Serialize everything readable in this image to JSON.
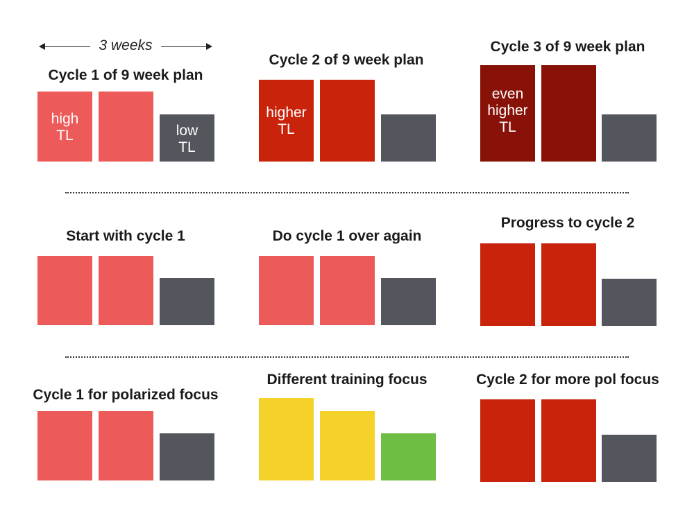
{
  "colors": {
    "light_red": "#ec5a59",
    "red": "#c9240b",
    "dark_red": "#881207",
    "gray": "#53565c",
    "yellow": "#f4d22a",
    "green": "#6fbe44"
  },
  "weeks_label": "3 weeks",
  "panels": [
    {
      "title": "Cycle 1 of 9 week plan",
      "bars": [
        {
          "color": "light_red",
          "level": "high",
          "label": "high\nTL"
        },
        {
          "color": "light_red",
          "level": "high",
          "label": ""
        },
        {
          "color": "gray",
          "level": "low",
          "label": "low\nTL"
        }
      ]
    },
    {
      "title": "Cycle 2 of 9 week plan",
      "bars": [
        {
          "color": "red",
          "level": "higher",
          "label": "higher\nTL"
        },
        {
          "color": "red",
          "level": "higher",
          "label": ""
        },
        {
          "color": "gray",
          "level": "low",
          "label": ""
        }
      ]
    },
    {
      "title": "Cycle 3 of 9 week plan",
      "bars": [
        {
          "color": "dark_red",
          "level": "even higher",
          "label": "even\nhigher\nTL"
        },
        {
          "color": "dark_red",
          "level": "even higher",
          "label": ""
        },
        {
          "color": "gray",
          "level": "low",
          "label": ""
        }
      ]
    },
    {
      "title": "Start with cycle 1",
      "bars": [
        {
          "color": "light_red",
          "label": ""
        },
        {
          "color": "light_red",
          "label": ""
        },
        {
          "color": "gray",
          "label": ""
        }
      ]
    },
    {
      "title": "Do cycle 1 over again",
      "bars": [
        {
          "color": "light_red",
          "label": ""
        },
        {
          "color": "light_red",
          "label": ""
        },
        {
          "color": "gray",
          "label": ""
        }
      ]
    },
    {
      "title": "Progress to cycle 2",
      "bars": [
        {
          "color": "red",
          "label": ""
        },
        {
          "color": "red",
          "label": ""
        },
        {
          "color": "gray",
          "label": ""
        }
      ]
    },
    {
      "title": "Cycle 1 for polarized focus",
      "bars": [
        {
          "color": "light_red",
          "label": ""
        },
        {
          "color": "light_red",
          "label": ""
        },
        {
          "color": "gray",
          "label": ""
        }
      ]
    },
    {
      "title": "Different training focus",
      "bars": [
        {
          "color": "yellow",
          "label": ""
        },
        {
          "color": "yellow",
          "label": ""
        },
        {
          "color": "green",
          "label": ""
        }
      ]
    },
    {
      "title": "Cycle 2 for more pol focus",
      "bars": [
        {
          "color": "red",
          "label": ""
        },
        {
          "color": "red",
          "label": ""
        },
        {
          "color": "gray",
          "label": ""
        }
      ]
    }
  ]
}
